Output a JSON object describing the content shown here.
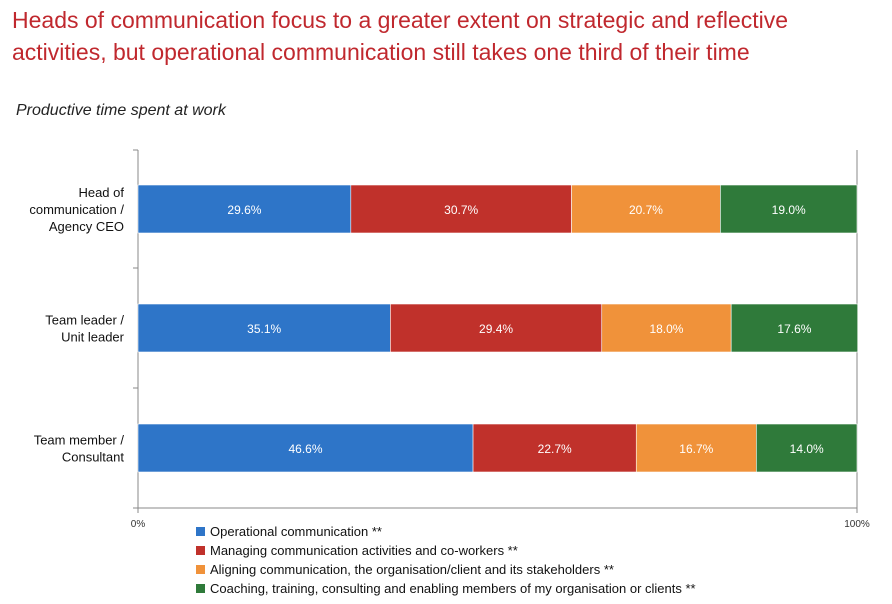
{
  "title": "Heads of communication focus to a greater extent on strategic and reflective activities, but operational communication still takes one third of their time",
  "subtitle": "Productive time spent at work",
  "chart_data": {
    "type": "bar",
    "orientation": "horizontal",
    "stacked": true,
    "xlim": [
      0,
      100
    ],
    "x_tick_labels": [
      "0%",
      "100%"
    ],
    "categories": [
      [
        "Head of",
        "communication /",
        "Agency CEO"
      ],
      [
        "Team leader /",
        "Unit leader"
      ],
      [
        "Team member /",
        "Consultant"
      ]
    ],
    "series": [
      {
        "name": "Operational communication **",
        "color": "#2e75c8",
        "values": [
          29.6,
          35.1,
          46.6
        ],
        "labels": [
          "29.6%",
          "35.1%",
          "46.6%"
        ]
      },
      {
        "name": "Managing communication activities and co-workers **",
        "color": "#c0312b",
        "values": [
          30.7,
          29.4,
          22.7
        ],
        "labels": [
          "30.7%",
          "29.4%",
          "22.7%"
        ]
      },
      {
        "name": "Aligning communication, the organisation/client and its stakeholders **",
        "color": "#f0923a",
        "values": [
          20.7,
          18.0,
          16.7
        ],
        "labels": [
          "20.7%",
          "18.0%",
          "16.7%"
        ]
      },
      {
        "name": "Coaching, training, consulting and enabling members of my organisation or clients **",
        "color": "#2f7a3a",
        "values": [
          19.0,
          17.6,
          14.0
        ],
        "labels": [
          "19.0%",
          "17.6%",
          "14.0%"
        ]
      }
    ],
    "legend_position": "bottom",
    "grid": false
  }
}
